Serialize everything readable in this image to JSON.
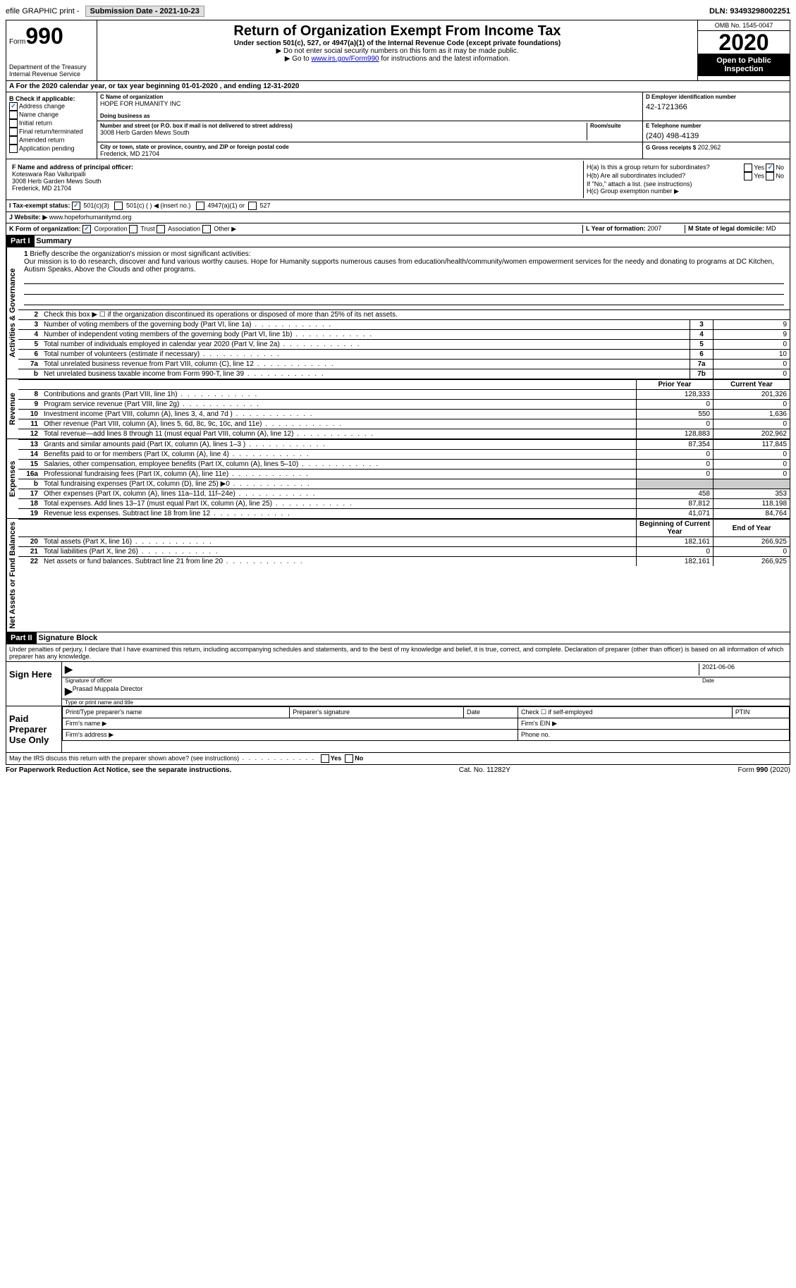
{
  "top": {
    "efile": "efile GRAPHIC print - ",
    "submission": "Submission Date - 2021-10-23",
    "dln": "DLN: 93493298002251"
  },
  "header": {
    "form": "Form",
    "num": "990",
    "dept": "Department of the Treasury Internal Revenue Service",
    "title": "Return of Organization Exempt From Income Tax",
    "under": "Under section 501(c), 527, or 4947(a)(1) of the Internal Revenue Code (except private foundations)",
    "ssn": "▶ Do not enter social security numbers on this form as it may be made public.",
    "goto_pre": "▶ Go to ",
    "goto_link": "www.irs.gov/Form990",
    "goto_post": " for instructions and the latest information.",
    "omb": "OMB No. 1545-0047",
    "year": "2020",
    "inspection": "Open to Public Inspection"
  },
  "lineA": "A For the 2020 calendar year, or tax year beginning 01-01-2020    , and ending 12-31-2020",
  "sectionB": {
    "title": "B Check if applicable:",
    "opts": [
      "Address change",
      "Name change",
      "Initial return",
      "Final return/terminated",
      "Amended return",
      "Application pending"
    ]
  },
  "sectionC": {
    "name_lbl": "C Name of organization",
    "name": "HOPE FOR HUMANITY INC",
    "dba_lbl": "Doing business as",
    "addr_lbl": "Number and street (or P.O. box if mail is not delivered to street address)",
    "room_lbl": "Room/suite",
    "addr": "3008 Herb Garden Mews South",
    "city_lbl": "City or town, state or province, country, and ZIP or foreign postal code",
    "city": "Frederick, MD  21704"
  },
  "sectionD": {
    "lbl": "D Employer identification number",
    "val": "42-1721366"
  },
  "sectionE": {
    "lbl": "E Telephone number",
    "val": "(240) 498-4139"
  },
  "sectionG": {
    "lbl": "G Gross receipts $",
    "val": "202,962"
  },
  "sectionF": {
    "lbl": "F Name and address of principal officer:",
    "name": "Koteswara Rao Valluripalli",
    "addr1": "3008 Herb Garden Mews South",
    "addr2": "Frederick, MD  21704"
  },
  "sectionH": {
    "a": "H(a)  Is this a group return for subordinates?",
    "b": "H(b)  Are all subordinates included?",
    "note": "If \"No,\" attach a list. (see instructions)",
    "c": "H(c)  Group exemption number ▶",
    "yes": "Yes",
    "no": "No"
  },
  "sectionI": {
    "lbl": "I   Tax-exempt status:",
    "o1": "501(c)(3)",
    "o2": "501(c) (   ) ◀ (insert no.)",
    "o3": "4947(a)(1) or",
    "o4": "527"
  },
  "sectionJ": {
    "lbl": "J   Website: ▶",
    "val": "www.hopeforhumanitymd.org"
  },
  "sectionK": {
    "lbl": "K Form of organization:",
    "o1": "Corporation",
    "o2": "Trust",
    "o3": "Association",
    "o4": "Other ▶"
  },
  "sectionL": {
    "lbl": "L Year of formation:",
    "val": "2007"
  },
  "sectionM": {
    "lbl": "M State of legal domicile:",
    "val": "MD"
  },
  "part1": {
    "num": "Part I",
    "title": "Summary"
  },
  "mission": {
    "q": "Briefly describe the organization's mission or most significant activities:",
    "text": "Our mission is to do research, discover and fund various worthy causes. Hope for Humanity supports numerous causes from education/health/community/women empowerment services for the needy and donating to programs at DC Kitchen, Autism Speaks, Above the Clouds and other programs."
  },
  "vlabels": {
    "gov": "Activities & Governance",
    "rev": "Revenue",
    "exp": "Expenses",
    "net": "Net Assets or Fund Balances"
  },
  "gov_lines": {
    "l2": "Check this box ▶ ☐  if the organization discontinued its operations or disposed of more than 25% of its net assets.",
    "l3": "Number of voting members of the governing body (Part VI, line 1a)",
    "l4": "Number of independent voting members of the governing body (Part VI, line 1b)",
    "l5": "Total number of individuals employed in calendar year 2020 (Part V, line 2a)",
    "l6": "Total number of volunteers (estimate if necessary)",
    "l7a": "Total unrelated business revenue from Part VIII, column (C), line 12",
    "l7b": "Net unrelated business taxable income from Form 990-T, line 39"
  },
  "gov_vals": {
    "l3": "9",
    "l4": "9",
    "l5": "0",
    "l6": "10",
    "l7a": "0",
    "l7b": "0"
  },
  "headers": {
    "prior": "Prior Year",
    "current": "Current Year",
    "beg": "Beginning of Current Year",
    "end": "End of Year"
  },
  "rev_lines": [
    {
      "n": "8",
      "t": "Contributions and grants (Part VIII, line 1h)",
      "p": "128,333",
      "c": "201,326"
    },
    {
      "n": "9",
      "t": "Program service revenue (Part VIII, line 2g)",
      "p": "0",
      "c": "0"
    },
    {
      "n": "10",
      "t": "Investment income (Part VIII, column (A), lines 3, 4, and 7d )",
      "p": "550",
      "c": "1,636"
    },
    {
      "n": "11",
      "t": "Other revenue (Part VIII, column (A), lines 5, 6d, 8c, 9c, 10c, and 11e)",
      "p": "0",
      "c": "0"
    },
    {
      "n": "12",
      "t": "Total revenue—add lines 8 through 11 (must equal Part VIII, column (A), line 12)",
      "p": "128,883",
      "c": "202,962"
    }
  ],
  "exp_lines": [
    {
      "n": "13",
      "t": "Grants and similar amounts paid (Part IX, column (A), lines 1–3 )",
      "p": "87,354",
      "c": "117,845"
    },
    {
      "n": "14",
      "t": "Benefits paid to or for members (Part IX, column (A), line 4)",
      "p": "0",
      "c": "0"
    },
    {
      "n": "15",
      "t": "Salaries, other compensation, employee benefits (Part IX, column (A), lines 5–10)",
      "p": "0",
      "c": "0"
    },
    {
      "n": "16a",
      "t": "Professional fundraising fees (Part IX, column (A), line 11e)",
      "p": "0",
      "c": "0"
    },
    {
      "n": "b",
      "t": "Total fundraising expenses (Part IX, column (D), line 25) ▶0",
      "p": "",
      "c": "",
      "shade": true
    },
    {
      "n": "17",
      "t": "Other expenses (Part IX, column (A), lines 11a–11d, 11f–24e)",
      "p": "458",
      "c": "353"
    },
    {
      "n": "18",
      "t": "Total expenses. Add lines 13–17 (must equal Part IX, column (A), line 25)",
      "p": "87,812",
      "c": "118,198"
    },
    {
      "n": "19",
      "t": "Revenue less expenses. Subtract line 18 from line 12",
      "p": "41,071",
      "c": "84,764"
    }
  ],
  "net_lines": [
    {
      "n": "20",
      "t": "Total assets (Part X, line 16)",
      "p": "182,161",
      "c": "266,925"
    },
    {
      "n": "21",
      "t": "Total liabilities (Part X, line 26)",
      "p": "0",
      "c": "0"
    },
    {
      "n": "22",
      "t": "Net assets or fund balances. Subtract line 21 from line 20",
      "p": "182,161",
      "c": "266,925"
    }
  ],
  "part2": {
    "num": "Part II",
    "title": "Signature Block"
  },
  "perjury": "Under penalties of perjury, I declare that I have examined this return, including accompanying schedules and statements, and to the best of my knowledge and belief, it is true, correct, and complete. Declaration of preparer (other than officer) is based on all information of which preparer has any knowledge.",
  "sign": {
    "here": "Sign Here",
    "sig_lbl": "Signature of officer",
    "date": "2021-06-06",
    "date_lbl": "Date",
    "name": "Prasad Muppala  Director",
    "name_lbl": "Type or print name and title"
  },
  "prep": {
    "title": "Paid Preparer Use Only",
    "h1": "Print/Type preparer's name",
    "h2": "Preparer's signature",
    "h3": "Date",
    "h4": "Check ☐ if self-employed",
    "h5": "PTIN",
    "f1": "Firm's name  ▶",
    "f2": "Firm's EIN ▶",
    "f3": "Firm's address ▶",
    "f4": "Phone no."
  },
  "discuss": "May the IRS discuss this return with the preparer shown above? (see instructions)",
  "footer": {
    "l": "For Paperwork Reduction Act Notice, see the separate instructions.",
    "m": "Cat. No. 11282Y",
    "r": "Form 990 (2020)"
  }
}
